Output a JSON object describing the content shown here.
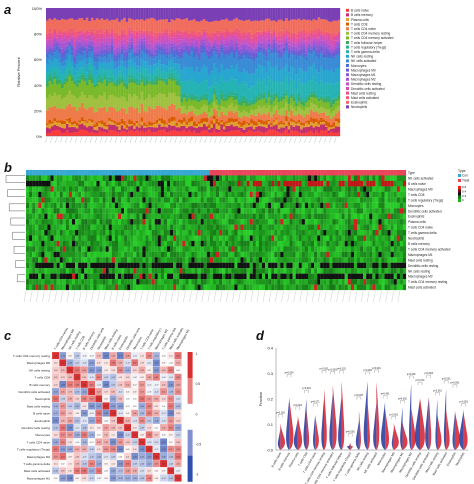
{
  "panels": {
    "a": {
      "label": "a",
      "ylabel": "Relative Percent",
      "yticks": [
        "0%",
        "20%",
        "40%",
        "60%",
        "80%",
        "100%"
      ],
      "legend": [
        "B cells naive",
        "B cells memory",
        "Plasma cells",
        "T cells CD8",
        "T cells CD4 naive",
        "T cells CD4 memory resting",
        "T cells CD4 memory activated",
        "T cells follicular helper",
        "T cells regulatory (Tregs)",
        "T cells gamma delta",
        "NK cells resting",
        "NK cells activated",
        "Monocytes",
        "Macrophages M0",
        "Macrophages M1",
        "Macrophages M2",
        "Dendritic cells resting",
        "Dendritic cells activated",
        "Mast cells resting",
        "Mast cells activated",
        "Eosinophils",
        "Neutrophils"
      ]
    },
    "b": {
      "label": "b",
      "rows": [
        "Type",
        "NK cells activated",
        "B cells naive",
        "Macrophages M0",
        "T cells CD8",
        "T cells regulatory (Tregs)",
        "Monocytes",
        "Dendritic cells activated",
        "Eosinophils",
        "Plasma cells",
        "T cells CD4 naive",
        "T cells gamma delta",
        "Neutrophils",
        "B cells memory",
        "T cells CD4 memory activated",
        "Macrophages M1",
        "Mast cells resting",
        "Dendritic cells resting",
        "NK cells resting",
        "Macrophages M2",
        "T cells CD4 memory resting",
        "Mast cells activated"
      ],
      "legend_title": "Type",
      "legend_items": [
        "Con",
        "Treat"
      ],
      "scale": [
        "0.6",
        "0.4",
        "0.2",
        "0"
      ]
    },
    "c": {
      "label": "c",
      "vars": [
        "T cells CD4 memory resting",
        "Macrophages M0",
        "NK cells resting",
        "T cells CD8",
        "B cells memory",
        "Dendritic cells activated",
        "Neutrophils",
        "Mast cells resting",
        "B cells naive",
        "Eosinophils",
        "Dendritic cells resting",
        "Monocytes",
        "T cells CD4 naive",
        "T cells regulatory (Tregs)",
        "Macrophages M2",
        "T cells gamma delta",
        "Mast cells activated",
        "Macrophages M1"
      ],
      "scale": [
        "1",
        "0.5",
        "0",
        "-0.5",
        "-1"
      ]
    },
    "d": {
      "label": "d",
      "ylabel": "Fraction",
      "yticks": [
        "0.0",
        "0.1",
        "0.2",
        "0.3",
        "0.4"
      ],
      "categories": [
        "B cells naive",
        "B cells memory",
        "Plasma cells",
        "T cells CD8",
        "T cells CD4 naive",
        "T cells CD4 memory resting",
        "T cells CD4 memory activated",
        "T cells follicular helper",
        "T cells regulatory (Tregs)",
        "T cells gamma delta",
        "NK cells resting",
        "NK cells activated",
        "Monocytes",
        "Macrophages M0",
        "Macrophages M1",
        "Macrophages M2",
        "Dendritic cells resting",
        "Dendritic cells activated",
        "Mast cells resting",
        "Mast cells activated",
        "Eosinophils",
        "Neutrophils"
      ],
      "pvalues": [
        "p=0.183",
        "p=0.024",
        "p=0.001",
        "p<0.001",
        "p=0.071",
        "p<0.001",
        "p<0.001",
        "p=0.102",
        "p=0.005",
        "p=0.037",
        "p<0.001",
        "p<0.001",
        "p=0.431",
        "p<0.001",
        "p=0.002",
        "p<0.001",
        "p=0.213",
        "p=0.004",
        "p<0.001",
        "p<0.001",
        "p=0.091",
        "p<0.001"
      ]
    }
  },
  "colors": {
    "cell_types": [
      "#ff3b3b",
      "#c22d6c",
      "#e0a030",
      "#d95b00",
      "#ef7b4b",
      "#a0c040",
      "#7aba2a",
      "#3cab5e",
      "#2ab090",
      "#25b3b3",
      "#28a6d0",
      "#3a8bd6",
      "#4a6fd5",
      "#6d5cd5",
      "#8a5bd5",
      "#a855d3",
      "#c354c5",
      "#d84fb0",
      "#e85090",
      "#ef5b76",
      "#f06d5d",
      "#7a3fb5"
    ],
    "con": "#36a8d1",
    "treat": "#e8455b",
    "heat_low": "#22b022",
    "heat_mid": "#111111",
    "heat_high": "#ff2020",
    "corr_pos": "#d83030",
    "corr_neg": "#2f4fb0",
    "violin_con": "#2f3f9f",
    "violin_treat": "#d42a3a"
  }
}
